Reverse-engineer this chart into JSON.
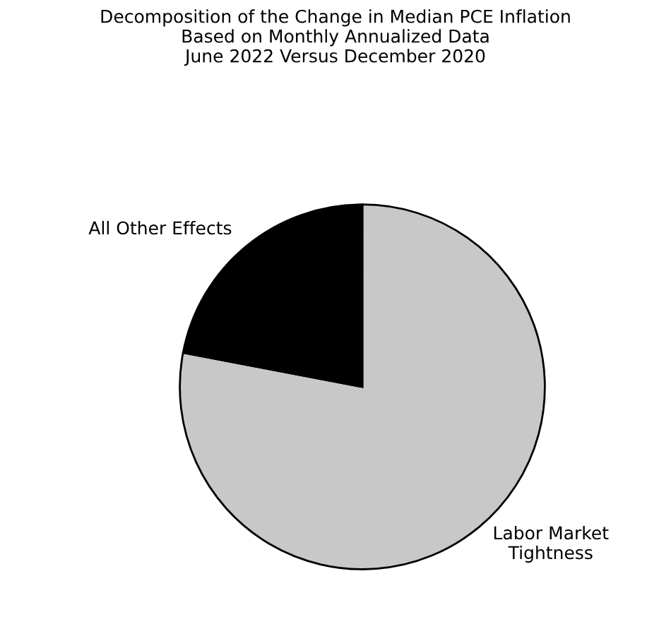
{
  "chart_data": {
    "type": "pie",
    "title": "Decomposition of the Change in Median PCE Inflation\nBased on Monthly Annualized Data\nJune 2022 Versus December 2020",
    "categories": [
      "Labor Market\nTightness",
      "All Other Effects"
    ],
    "values": [
      78,
      22
    ],
    "colors": [
      "#c8c8c8",
      "#000000"
    ],
    "legend": false
  }
}
